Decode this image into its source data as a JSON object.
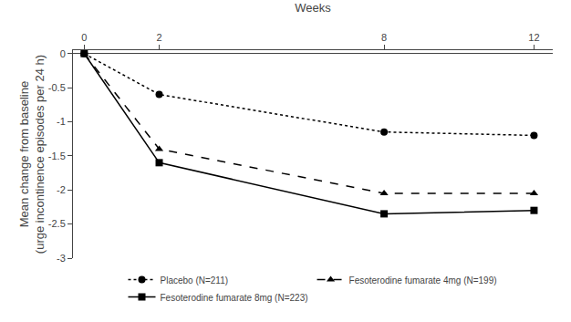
{
  "chart_data": {
    "type": "line",
    "x_label": "Weeks",
    "y_label": "Mean change from baseline\n(urge incontinence episodes per 24 h)",
    "x": [
      0,
      2,
      8,
      12
    ],
    "series": [
      {
        "name": "Placebo (N=211)",
        "color": "#000000",
        "marker": "circle",
        "line_style": "dotted",
        "values": [
          0.0,
          -0.6,
          -1.15,
          -1.2
        ]
      },
      {
        "name": "Fesoterodine fumarate 4mg (N=199)",
        "color": "#000000",
        "marker": "triangle",
        "line_style": "dashed",
        "values": [
          0.0,
          -1.4,
          -2.05,
          -2.05
        ]
      },
      {
        "name": "Fesoterodine fumarate 8mg (N=223)",
        "color": "#000000",
        "marker": "square",
        "line_style": "solid",
        "values": [
          0.0,
          -1.6,
          -2.35,
          -2.3
        ]
      }
    ],
    "xlim": [
      -0.3,
      12.5
    ],
    "xticks": [
      0,
      2,
      8,
      12
    ],
    "ylim": [
      -3.0,
      0.05
    ],
    "yticks": [
      0,
      -0.5,
      -1,
      -1.5,
      -2,
      -2.5,
      -3
    ],
    "grid": false,
    "legend": "bottom"
  }
}
